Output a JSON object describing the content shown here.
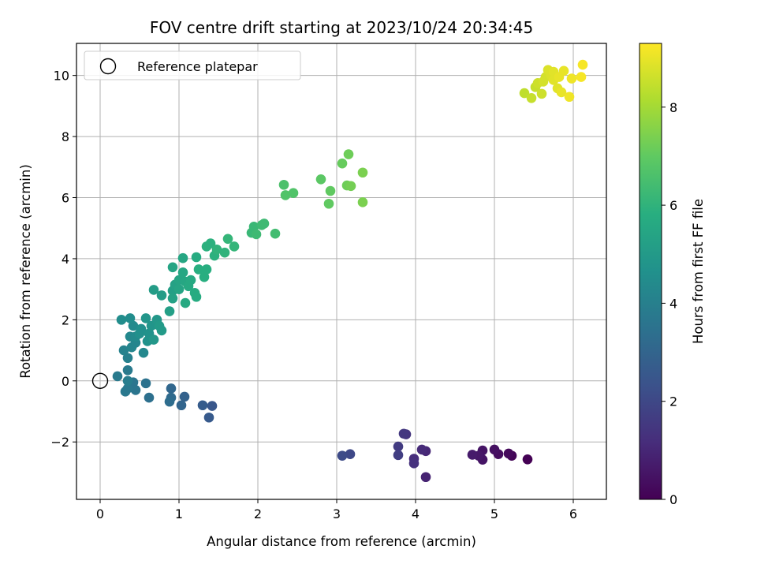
{
  "chart_data": {
    "type": "scatter",
    "title": "FOV centre drift starting at 2023/10/24 20:34:45",
    "xlabel": "Angular distance from reference (arcmin)",
    "ylabel": "Rotation from reference (arcmin)",
    "colorbar_label": "Hours from first FF file",
    "xlim": [
      -0.3,
      6.42
    ],
    "ylim": [
      -3.88,
      11.05
    ],
    "x_ticks": [
      0,
      1,
      2,
      3,
      4,
      5,
      6
    ],
    "y_ticks": [
      -2,
      0,
      2,
      4,
      6,
      8,
      10
    ],
    "colorbar_range": [
      0,
      9.3
    ],
    "colorbar_ticks": [
      0,
      2,
      4,
      6,
      8
    ],
    "colormap": "viridis",
    "grid": true,
    "legend": {
      "placement": "top-left",
      "entries": [
        {
          "label": "Reference platepar",
          "marker": "open-circle"
        }
      ]
    },
    "reference_point": {
      "x": 0,
      "y": 0
    },
    "points": [
      {
        "x": 5.42,
        "y": -2.57,
        "t": 0.0
      },
      {
        "x": 5.22,
        "y": -2.45,
        "t": 0.1
      },
      {
        "x": 5.18,
        "y": -2.38,
        "t": 0.2
      },
      {
        "x": 5.05,
        "y": -2.4,
        "t": 0.3
      },
      {
        "x": 5.0,
        "y": -2.25,
        "t": 0.4
      },
      {
        "x": 4.85,
        "y": -2.28,
        "t": 0.5
      },
      {
        "x": 4.85,
        "y": -2.58,
        "t": 0.5
      },
      {
        "x": 4.8,
        "y": -2.45,
        "t": 0.6
      },
      {
        "x": 4.72,
        "y": -2.42,
        "t": 0.7
      },
      {
        "x": 4.13,
        "y": -3.15,
        "t": 0.9
      },
      {
        "x": 4.13,
        "y": -2.3,
        "t": 1.0
      },
      {
        "x": 4.08,
        "y": -2.25,
        "t": 1.1
      },
      {
        "x": 3.98,
        "y": -2.55,
        "t": 1.2
      },
      {
        "x": 3.98,
        "y": -2.7,
        "t": 1.3
      },
      {
        "x": 3.88,
        "y": -1.75,
        "t": 1.4
      },
      {
        "x": 3.85,
        "y": -1.73,
        "t": 1.5
      },
      {
        "x": 3.78,
        "y": -2.15,
        "t": 1.6
      },
      {
        "x": 3.78,
        "y": -2.43,
        "t": 1.7
      },
      {
        "x": 3.17,
        "y": -2.4,
        "t": 2.0
      },
      {
        "x": 3.07,
        "y": -2.45,
        "t": 2.1
      },
      {
        "x": 1.42,
        "y": -0.82,
        "t": 2.5
      },
      {
        "x": 1.38,
        "y": -1.2,
        "t": 2.6
      },
      {
        "x": 1.3,
        "y": -0.8,
        "t": 2.7
      },
      {
        "x": 1.07,
        "y": -0.52,
        "t": 2.9
      },
      {
        "x": 1.03,
        "y": -0.8,
        "t": 3.0
      },
      {
        "x": 0.9,
        "y": -0.25,
        "t": 3.1
      },
      {
        "x": 0.9,
        "y": -0.55,
        "t": 3.2
      },
      {
        "x": 0.88,
        "y": -0.68,
        "t": 3.3
      },
      {
        "x": 0.62,
        "y": -0.55,
        "t": 3.4
      },
      {
        "x": 0.58,
        "y": -0.08,
        "t": 3.5
      },
      {
        "x": 0.42,
        "y": -0.05,
        "t": 3.6
      },
      {
        "x": 0.45,
        "y": -0.3,
        "t": 3.6
      },
      {
        "x": 0.35,
        "y": -0.25,
        "t": 3.7
      },
      {
        "x": 0.32,
        "y": -0.35,
        "t": 3.7
      },
      {
        "x": 0.35,
        "y": 0.35,
        "t": 3.8
      },
      {
        "x": 0.22,
        "y": 0.15,
        "t": 3.8
      },
      {
        "x": 0.35,
        "y": 0.0,
        "t": 3.9
      },
      {
        "x": 0.35,
        "y": 0.75,
        "t": 4.0
      },
      {
        "x": 0.3,
        "y": 1.0,
        "t": 4.1
      },
      {
        "x": 0.4,
        "y": 1.1,
        "t": 4.2
      },
      {
        "x": 0.45,
        "y": 1.25,
        "t": 4.2
      },
      {
        "x": 0.55,
        "y": 0.92,
        "t": 4.3
      },
      {
        "x": 0.38,
        "y": 1.45,
        "t": 4.3
      },
      {
        "x": 0.45,
        "y": 1.45,
        "t": 4.4
      },
      {
        "x": 0.42,
        "y": 1.8,
        "t": 4.4
      },
      {
        "x": 0.38,
        "y": 2.05,
        "t": 4.5
      },
      {
        "x": 0.27,
        "y": 2.0,
        "t": 4.5
      },
      {
        "x": 0.5,
        "y": 1.55,
        "t": 4.6
      },
      {
        "x": 0.52,
        "y": 1.7,
        "t": 4.6
      },
      {
        "x": 0.6,
        "y": 1.3,
        "t": 4.7
      },
      {
        "x": 0.62,
        "y": 1.55,
        "t": 4.7
      },
      {
        "x": 0.65,
        "y": 1.8,
        "t": 4.8
      },
      {
        "x": 0.58,
        "y": 2.05,
        "t": 4.8
      },
      {
        "x": 0.68,
        "y": 1.35,
        "t": 4.9
      },
      {
        "x": 0.72,
        "y": 2.0,
        "t": 4.9
      },
      {
        "x": 0.75,
        "y": 1.8,
        "t": 5.0
      },
      {
        "x": 0.78,
        "y": 1.65,
        "t": 5.0
      },
      {
        "x": 0.68,
        "y": 2.98,
        "t": 5.1
      },
      {
        "x": 0.78,
        "y": 2.8,
        "t": 5.1
      },
      {
        "x": 0.88,
        "y": 2.28,
        "t": 5.2
      },
      {
        "x": 0.92,
        "y": 2.95,
        "t": 5.2
      },
      {
        "x": 0.92,
        "y": 2.7,
        "t": 5.3
      },
      {
        "x": 0.95,
        "y": 3.15,
        "t": 5.3
      },
      {
        "x": 0.92,
        "y": 3.72,
        "t": 5.4
      },
      {
        "x": 1.0,
        "y": 3.0,
        "t": 5.4
      },
      {
        "x": 1.0,
        "y": 3.3,
        "t": 5.4
      },
      {
        "x": 1.05,
        "y": 3.55,
        "t": 5.5
      },
      {
        "x": 1.05,
        "y": 4.02,
        "t": 5.5
      },
      {
        "x": 1.08,
        "y": 3.25,
        "t": 5.5
      },
      {
        "x": 1.08,
        "y": 2.55,
        "t": 5.6
      },
      {
        "x": 1.12,
        "y": 3.1,
        "t": 5.6
      },
      {
        "x": 1.15,
        "y": 3.3,
        "t": 5.6
      },
      {
        "x": 1.2,
        "y": 2.88,
        "t": 5.7
      },
      {
        "x": 1.22,
        "y": 4.05,
        "t": 5.7
      },
      {
        "x": 1.22,
        "y": 2.75,
        "t": 5.7
      },
      {
        "x": 1.25,
        "y": 3.65,
        "t": 5.8
      },
      {
        "x": 1.32,
        "y": 3.4,
        "t": 5.8
      },
      {
        "x": 1.35,
        "y": 3.65,
        "t": 5.8
      },
      {
        "x": 1.35,
        "y": 4.4,
        "t": 5.9
      },
      {
        "x": 1.4,
        "y": 4.5,
        "t": 5.9
      },
      {
        "x": 1.45,
        "y": 4.1,
        "t": 5.9
      },
      {
        "x": 1.48,
        "y": 4.3,
        "t": 6.0
      },
      {
        "x": 1.58,
        "y": 4.2,
        "t": 6.0
      },
      {
        "x": 1.62,
        "y": 4.65,
        "t": 6.1
      },
      {
        "x": 1.7,
        "y": 4.4,
        "t": 6.1
      },
      {
        "x": 1.92,
        "y": 4.85,
        "t": 6.2
      },
      {
        "x": 1.95,
        "y": 5.05,
        "t": 6.2
      },
      {
        "x": 1.98,
        "y": 4.8,
        "t": 6.3
      },
      {
        "x": 2.05,
        "y": 5.1,
        "t": 6.3
      },
      {
        "x": 2.08,
        "y": 5.15,
        "t": 6.3
      },
      {
        "x": 2.22,
        "y": 4.82,
        "t": 6.4
      },
      {
        "x": 2.33,
        "y": 6.42,
        "t": 6.6
      },
      {
        "x": 2.35,
        "y": 6.08,
        "t": 6.7
      },
      {
        "x": 2.45,
        "y": 6.15,
        "t": 6.7
      },
      {
        "x": 2.8,
        "y": 6.6,
        "t": 6.9
      },
      {
        "x": 2.9,
        "y": 5.8,
        "t": 7.0
      },
      {
        "x": 2.92,
        "y": 6.22,
        "t": 7.0
      },
      {
        "x": 3.07,
        "y": 7.12,
        "t": 7.1
      },
      {
        "x": 3.13,
        "y": 6.4,
        "t": 7.2
      },
      {
        "x": 3.15,
        "y": 7.42,
        "t": 7.2
      },
      {
        "x": 3.18,
        "y": 6.38,
        "t": 7.3
      },
      {
        "x": 3.33,
        "y": 5.85,
        "t": 7.4
      },
      {
        "x": 3.33,
        "y": 6.82,
        "t": 7.4
      },
      {
        "x": 5.38,
        "y": 9.42,
        "t": 8.4
      },
      {
        "x": 5.47,
        "y": 9.26,
        "t": 8.5
      },
      {
        "x": 5.52,
        "y": 9.62,
        "t": 8.5
      },
      {
        "x": 5.55,
        "y": 9.75,
        "t": 8.6
      },
      {
        "x": 5.6,
        "y": 9.4,
        "t": 8.6
      },
      {
        "x": 5.62,
        "y": 9.8,
        "t": 8.7
      },
      {
        "x": 5.65,
        "y": 9.95,
        "t": 8.7
      },
      {
        "x": 5.68,
        "y": 10.18,
        "t": 8.8
      },
      {
        "x": 5.72,
        "y": 10.0,
        "t": 8.8
      },
      {
        "x": 5.75,
        "y": 10.12,
        "t": 8.9
      },
      {
        "x": 5.75,
        "y": 9.85,
        "t": 8.9
      },
      {
        "x": 5.8,
        "y": 9.58,
        "t": 8.9
      },
      {
        "x": 5.82,
        "y": 9.95,
        "t": 9.0
      },
      {
        "x": 5.85,
        "y": 9.45,
        "t": 9.0
      },
      {
        "x": 5.88,
        "y": 10.15,
        "t": 9.0
      },
      {
        "x": 5.95,
        "y": 9.3,
        "t": 9.1
      },
      {
        "x": 5.98,
        "y": 9.9,
        "t": 9.1
      },
      {
        "x": 6.1,
        "y": 9.95,
        "t": 9.2
      },
      {
        "x": 6.12,
        "y": 10.35,
        "t": 9.2
      }
    ]
  }
}
